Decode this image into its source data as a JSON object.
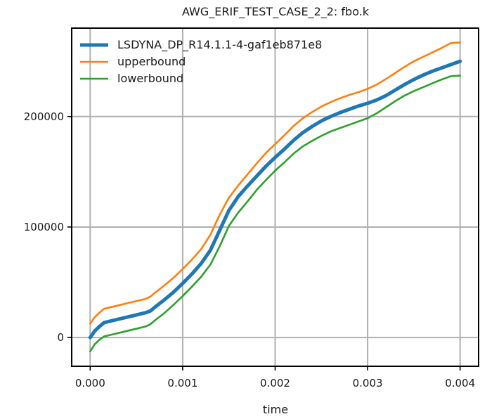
{
  "chart_data": {
    "type": "line",
    "title": "AWG_ERIF_TEST_CASE_2_2: fbo.k",
    "xlabel": "time",
    "ylabel": "",
    "xlim": [
      -0.0002,
      0.0042
    ],
    "ylim": [
      -26000,
      280000
    ],
    "xticks": [
      0.0,
      0.001,
      0.002,
      0.003,
      0.004
    ],
    "xtick_labels": [
      "0.000",
      "0.001",
      "0.002",
      "0.003",
      "0.004"
    ],
    "yticks": [
      0,
      100000,
      200000
    ],
    "ytick_labels": [
      "0",
      "100000",
      "200000"
    ],
    "grid": true,
    "legend_position": "upper-left",
    "series": [
      {
        "name": "LSDYNA_DP_R14.1.1-4-gaf1eb871e8",
        "color": "#1f77b4",
        "x": [
          0.0,
          5e-05,
          0.0001,
          0.00015,
          0.0002,
          0.0003,
          0.0004,
          0.0005,
          0.0006,
          0.00065,
          0.0007,
          0.0008,
          0.0009,
          0.001,
          0.0011,
          0.0012,
          0.0013,
          0.0014,
          0.0015,
          0.0016,
          0.0017,
          0.0018,
          0.0019,
          0.002,
          0.0021,
          0.0022,
          0.0023,
          0.0024,
          0.0025,
          0.0026,
          0.0027,
          0.0028,
          0.0029,
          0.003,
          0.0031,
          0.0032,
          0.0033,
          0.0034,
          0.0035,
          0.0036,
          0.0037,
          0.0038,
          0.0039,
          0.004
        ],
        "y": [
          0,
          6000,
          10000,
          13500,
          14500,
          16500,
          18500,
          20500,
          22500,
          24000,
          27500,
          34000,
          41000,
          49000,
          57500,
          67000,
          79000,
          97000,
          115000,
          127500,
          137000,
          146000,
          155000,
          163000,
          170500,
          178500,
          185500,
          191000,
          196000,
          200000,
          203500,
          206500,
          209500,
          212000,
          215000,
          219000,
          224000,
          229000,
          233500,
          237500,
          241000,
          244000,
          247000,
          250000
        ]
      },
      {
        "name": "upperbound",
        "color": "#ff7f0e",
        "x": [
          0.0,
          5e-05,
          0.0001,
          0.00015,
          0.0002,
          0.0003,
          0.0004,
          0.0005,
          0.0006,
          0.00065,
          0.0007,
          0.0008,
          0.0009,
          0.001,
          0.0011,
          0.0012,
          0.0013,
          0.0014,
          0.0015,
          0.0016,
          0.0017,
          0.0018,
          0.0019,
          0.002,
          0.0021,
          0.0022,
          0.0023,
          0.0024,
          0.0025,
          0.0026,
          0.0027,
          0.0028,
          0.0029,
          0.003,
          0.0031,
          0.0032,
          0.0033,
          0.0034,
          0.0035,
          0.0036,
          0.0037,
          0.0038,
          0.0039,
          0.004
        ],
        "y": [
          12500,
          18500,
          22500,
          26000,
          27000,
          29000,
          31000,
          33000,
          35000,
          37000,
          40500,
          47000,
          54000,
          62000,
          70500,
          80000,
          93000,
          111000,
          126500,
          137500,
          147500,
          157500,
          167000,
          175000,
          183000,
          191500,
          198500,
          204000,
          209000,
          213000,
          216500,
          219500,
          222000,
          225000,
          229000,
          234000,
          239500,
          245000,
          250000,
          254000,
          258000,
          262000,
          266500,
          267000
        ]
      },
      {
        "name": "lowerbound",
        "color": "#2ca02c",
        "x": [
          0.0,
          5e-05,
          0.0001,
          0.00015,
          0.0002,
          0.0003,
          0.0004,
          0.0005,
          0.0006,
          0.00065,
          0.0007,
          0.0008,
          0.0009,
          0.001,
          0.0011,
          0.0012,
          0.0013,
          0.0014,
          0.0015,
          0.0016,
          0.0017,
          0.0018,
          0.0019,
          0.002,
          0.0021,
          0.0022,
          0.0023,
          0.0024,
          0.0025,
          0.0026,
          0.0027,
          0.0028,
          0.0029,
          0.003,
          0.0031,
          0.0032,
          0.0033,
          0.0034,
          0.0035,
          0.0036,
          0.0037,
          0.0038,
          0.0039,
          0.004
        ],
        "y": [
          -12500,
          -6000,
          -2000,
          1000,
          2000,
          4000,
          6000,
          8000,
          10000,
          12000,
          15500,
          22000,
          29500,
          37500,
          46000,
          55000,
          66000,
          82500,
          101000,
          113000,
          123000,
          133500,
          142500,
          151000,
          158500,
          166500,
          173000,
          178000,
          182500,
          186500,
          189500,
          192500,
          195500,
          198500,
          203000,
          208500,
          214000,
          219000,
          223000,
          226500,
          230000,
          233500,
          236500,
          237000
        ]
      }
    ]
  }
}
